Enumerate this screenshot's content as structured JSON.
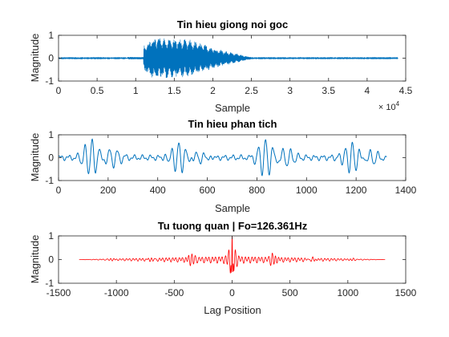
{
  "chart_data": [
    {
      "type": "line",
      "title": "Tin hieu giong noi goc",
      "xlabel": "Sample",
      "ylabel": "Magnitude",
      "xlim": [
        0,
        45000
      ],
      "ylim": [
        -1,
        1
      ],
      "x_ticks": [
        0,
        5000,
        10000,
        15000,
        20000,
        25000,
        30000,
        35000,
        40000,
        45000
      ],
      "x_tick_labels": [
        "0",
        "0.5",
        "1",
        "1.5",
        "2",
        "2.5",
        "3",
        "3.5",
        "4",
        "4.5"
      ],
      "x_exponent_label": "× 10",
      "x_exponent_power": "4",
      "y_ticks": [
        -1,
        0,
        1
      ],
      "y_tick_labels": [
        "-1",
        "0",
        "1"
      ],
      "series_color": "#0072BD",
      "signal_range": [
        0,
        44000
      ],
      "voiced_region": [
        11000,
        25000
      ]
    },
    {
      "type": "line",
      "title": "Tin hieu phan tich",
      "xlabel": "Sample",
      "ylabel": "Magnitude",
      "xlim": [
        0,
        1400
      ],
      "ylim": [
        -1,
        1
      ],
      "x_ticks": [
        0,
        200,
        400,
        600,
        800,
        1000,
        1200,
        1400
      ],
      "x_tick_labels": [
        "0",
        "200",
        "400",
        "600",
        "800",
        "1000",
        "1200",
        "1400"
      ],
      "y_ticks": [
        -1,
        0,
        1
      ],
      "y_tick_labels": [
        "-1",
        "0",
        "1"
      ],
      "series_color": "#0072BD",
      "signal_range": [
        0,
        1323
      ],
      "pulse_positions": [
        135,
        485,
        835,
        1185
      ],
      "approx_peak": 0.75
    },
    {
      "type": "line",
      "title": "Tu tuong quan | Fo=126.361Hz",
      "xlabel": "Lag Position",
      "ylabel": "Magnitude",
      "xlim": [
        -1500,
        1500
      ],
      "ylim": [
        -1,
        1
      ],
      "x_ticks": [
        -1500,
        -1000,
        -500,
        0,
        500,
        1000,
        1500
      ],
      "x_tick_labels": [
        "-1500",
        "-1000",
        "-500",
        "0",
        "500",
        "1000",
        "1500"
      ],
      "y_ticks": [
        -1,
        0,
        1
      ],
      "y_tick_labels": [
        "-1",
        "0",
        "1"
      ],
      "series_color": "#FF0000",
      "lag_range": [
        -1322,
        1322
      ],
      "peak": {
        "x": 0,
        "y": 1
      },
      "secondary_peaks": [
        -349,
        349
      ]
    }
  ]
}
